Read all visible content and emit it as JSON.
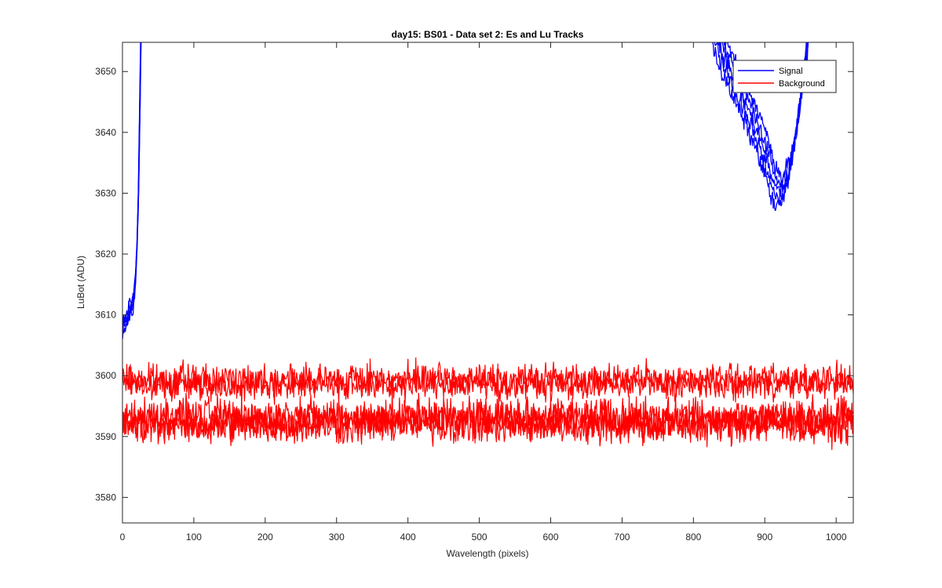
{
  "chart_data": {
    "type": "line",
    "title": "day15: BS01 - Data set 2: Es and Lu Tracks",
    "xlabel": "Wavelength (pixels)",
    "ylabel": "LuBot (ADU)",
    "xlim": [
      0,
      1024
    ],
    "ylim": [
      3575.8,
      3654.8
    ],
    "xticks": [
      0,
      100,
      200,
      300,
      400,
      500,
      600,
      700,
      800,
      900,
      1000
    ],
    "yticks": [
      3580,
      3590,
      3600,
      3610,
      3620,
      3630,
      3640,
      3650
    ],
    "grid": false,
    "legend_position": "top-right",
    "series": [
      {
        "name": "Signal",
        "color": "#0000ff",
        "segments": [
          {
            "x": [
              0,
              5,
              10,
              15,
              18,
              20,
              22,
              24,
              26
            ],
            "y": [
              3608,
              3609,
              3611,
              3612,
              3616,
              3622,
              3630,
              3645,
              3660
            ]
          },
          {
            "x": [
              825,
              840,
              860,
              880,
              900,
              912,
              920,
              930,
              940,
              950,
              958,
              962
            ],
            "y": [
              3660,
              3653,
              3648,
              3643,
              3637,
              3632,
              3630,
              3632,
              3637,
              3645,
              3652,
              3660
            ]
          }
        ],
        "tracks": 5
      },
      {
        "name": "Background",
        "color": "#ff0000",
        "tracks": [
          {
            "mean": 3599.4
          },
          {
            "mean": 3598.6
          },
          {
            "mean": 3593.2
          },
          {
            "mean": 3592.6
          },
          {
            "mean": 3592.0
          }
        ]
      }
    ]
  }
}
